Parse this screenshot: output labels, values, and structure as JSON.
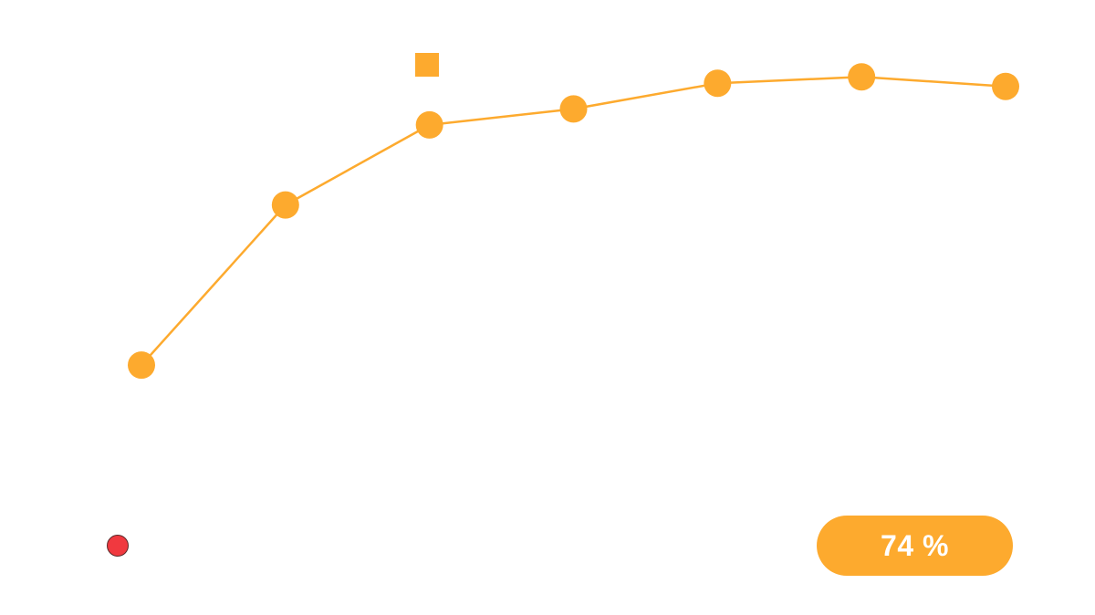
{
  "colors": {
    "series": "#FDAA2E",
    "status_dot": "#F0393F",
    "badge_bg": "#FDAA2E",
    "badge_text": "#FFFFFF"
  },
  "badge": {
    "text": "74 %",
    "value_percent": 74
  },
  "chart_data": {
    "type": "line",
    "title": "",
    "xlabel": "",
    "ylabel": "",
    "grid": false,
    "x": [
      1,
      2,
      3,
      4,
      5,
      6,
      7
    ],
    "ylim": [
      0,
      100
    ],
    "series": [
      {
        "values": [
          43,
          68,
          80.5,
          83,
          87,
          88,
          86.5
        ],
        "marker": "circle"
      }
    ],
    "legend": {
      "placement": "top-center",
      "marker": "square"
    }
  }
}
